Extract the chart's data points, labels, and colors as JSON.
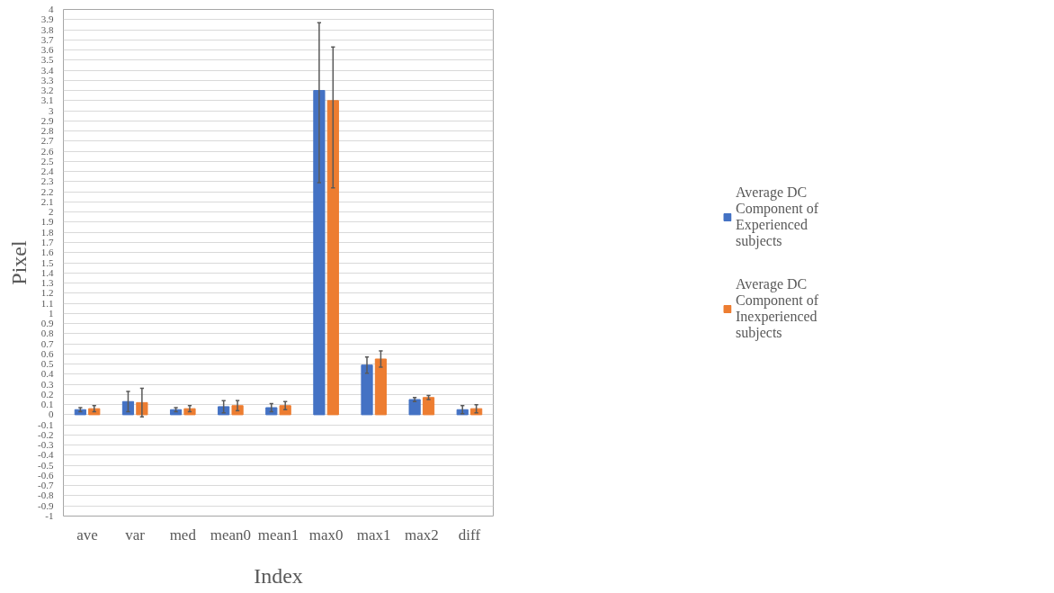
{
  "chart_data": {
    "type": "bar",
    "xlabel": "Index",
    "ylabel": "Pixel",
    "categories": [
      "ave",
      "var",
      "med",
      "mean0",
      "mean1",
      "max0",
      "max1",
      "max2",
      "diff"
    ],
    "series": [
      {
        "name": "Average DC Component of Experienced subjects",
        "color": "#4472c4",
        "values": [
          0.05,
          0.13,
          0.05,
          0.08,
          0.07,
          3.2,
          0.49,
          0.15,
          0.05
        ],
        "errors": [
          0.02,
          0.1,
          0.02,
          0.06,
          0.04,
          [
            2.29,
            3.87
          ],
          0.08,
          0.02,
          0.04
        ]
      },
      {
        "name": "Average DC Component of Inexperienced subjects",
        "color": "#ed7d31",
        "values": [
          0.06,
          0.12,
          0.06,
          0.09,
          0.09,
          3.1,
          0.55,
          0.17,
          0.06
        ],
        "errors": [
          0.03,
          0.14,
          0.03,
          0.05,
          0.04,
          [
            2.24,
            3.63
          ],
          0.08,
          0.02,
          0.04
        ]
      }
    ],
    "ylim": [
      -1,
      4
    ],
    "yticks": [
      -1,
      -0.9,
      -0.8,
      -0.7,
      -0.6,
      -0.5,
      -0.4,
      -0.3,
      -0.2,
      -0.1,
      0,
      0.1,
      0.2,
      0.3,
      0.4,
      0.5,
      0.6,
      0.7,
      0.8,
      0.9,
      1,
      1.1,
      1.2,
      1.3,
      1.4,
      1.5,
      1.6,
      1.7,
      1.8,
      1.9,
      2,
      2.1,
      2.2,
      2.3,
      2.4,
      2.5,
      2.6,
      2.7,
      2.8,
      2.9,
      3,
      3.1,
      3.2,
      3.3,
      3.4,
      3.5,
      3.6,
      3.7,
      3.8,
      3.9,
      4
    ],
    "grid": "y",
    "legend": "right"
  }
}
